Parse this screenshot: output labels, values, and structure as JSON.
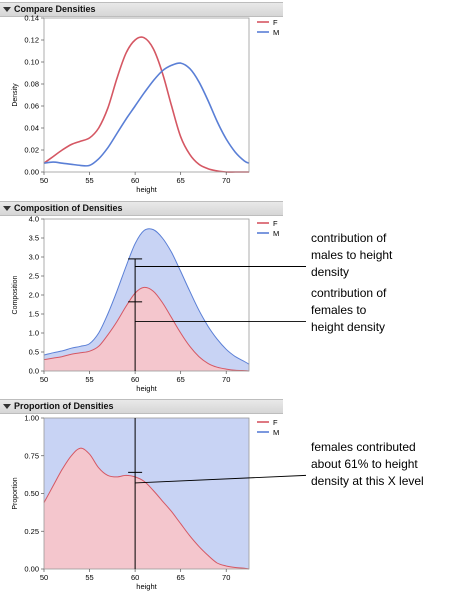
{
  "panels": [
    {
      "title": "Compare Densities"
    },
    {
      "title": "Composition of Densities"
    },
    {
      "title": "Proportion of Densities"
    }
  ],
  "colors": {
    "F": "#d55763",
    "M": "#5a7fd6",
    "F_fill": "#f4c6cd",
    "M_fill": "#c8d3f4"
  },
  "annotations": {
    "comp1": [
      "contribution of",
      "males to height",
      "density"
    ],
    "comp2": [
      "contribution of",
      "females to",
      "height density"
    ],
    "prop1": [
      "females contributed",
      "about 61% to height",
      "density at this X level"
    ]
  },
  "chart_data": [
    {
      "type": "line",
      "title": "Compare Densities",
      "xlabel": "height",
      "ylabel": "Density",
      "xlim": [
        50,
        72.5
      ],
      "ylim": [
        0,
        0.14
      ],
      "xticks": [
        "50",
        "55",
        "60",
        "65",
        "70"
      ],
      "yticks": [
        "0.00",
        "0.02",
        "0.04",
        "0.06",
        "0.08",
        "0.10",
        "0.12",
        "0.14"
      ],
      "legend": {
        "position": "top-right",
        "entries": [
          "F",
          "M"
        ]
      },
      "x": [
        50,
        51,
        52,
        53,
        54,
        55,
        56,
        57,
        58,
        59,
        60,
        61,
        62,
        63,
        64,
        65,
        66,
        67,
        68,
        69,
        70,
        71,
        72,
        72.5
      ],
      "series": [
        {
          "name": "F",
          "values": [
            0.008,
            0.014,
            0.02,
            0.025,
            0.028,
            0.031,
            0.04,
            0.058,
            0.085,
            0.108,
            0.12,
            0.122,
            0.112,
            0.09,
            0.06,
            0.032,
            0.016,
            0.007,
            0.003,
            0.001,
            0.0,
            0.0,
            0.0,
            0.0
          ]
        },
        {
          "name": "M",
          "values": [
            0.008,
            0.009,
            0.008,
            0.007,
            0.006,
            0.006,
            0.012,
            0.022,
            0.035,
            0.048,
            0.06,
            0.072,
            0.083,
            0.092,
            0.097,
            0.099,
            0.094,
            0.082,
            0.065,
            0.046,
            0.03,
            0.018,
            0.01,
            0.008
          ]
        }
      ]
    },
    {
      "type": "area",
      "title": "Composition of Densities",
      "xlabel": "height",
      "ylabel": "Composition",
      "xlim": [
        50,
        72.5
      ],
      "ylim": [
        0,
        4.0
      ],
      "xticks": [
        "50",
        "55",
        "60",
        "65",
        "70"
      ],
      "yticks": [
        "0.0",
        "0.5",
        "1.0",
        "1.5",
        "2.0",
        "2.5",
        "3.0",
        "3.5",
        "4.0"
      ],
      "legend": {
        "position": "top-right",
        "entries": [
          "F",
          "M"
        ]
      },
      "x": [
        50,
        51,
        52,
        53,
        54,
        55,
        56,
        57,
        58,
        59,
        60,
        61,
        62,
        63,
        64,
        65,
        66,
        67,
        68,
        69,
        70,
        71,
        72,
        72.5
      ],
      "series": [
        {
          "name": "F",
          "values": [
            0.3,
            0.34,
            0.38,
            0.44,
            0.48,
            0.52,
            0.65,
            0.95,
            1.3,
            1.7,
            2.05,
            2.2,
            2.1,
            1.8,
            1.4,
            1.0,
            0.65,
            0.38,
            0.2,
            0.1,
            0.05,
            0.02,
            0.01,
            0.0
          ]
        },
        {
          "name": "M",
          "values": [
            0.12,
            0.14,
            0.15,
            0.16,
            0.17,
            0.2,
            0.35,
            0.55,
            0.8,
            1.05,
            1.3,
            1.5,
            1.62,
            1.7,
            1.72,
            1.62,
            1.45,
            1.22,
            0.98,
            0.74,
            0.52,
            0.36,
            0.24,
            0.18
          ]
        }
      ]
    },
    {
      "type": "area",
      "title": "Proportion of Densities",
      "xlabel": "height",
      "ylabel": "Proportion",
      "xlim": [
        50,
        72.5
      ],
      "ylim": [
        0,
        1.0
      ],
      "xticks": [
        "50",
        "55",
        "60",
        "65",
        "70"
      ],
      "yticks": [
        "0.00",
        "0.25",
        "0.50",
        "0.75",
        "1.00"
      ],
      "legend": {
        "position": "top-right",
        "entries": [
          "F",
          "M"
        ]
      },
      "x": [
        50,
        51,
        52,
        53,
        54,
        55,
        56,
        57,
        58,
        59,
        60,
        61,
        62,
        63,
        64,
        65,
        66,
        67,
        68,
        69,
        70,
        71,
        72,
        72.5
      ],
      "series": [
        {
          "name": "F",
          "values": [
            0.44,
            0.55,
            0.66,
            0.75,
            0.8,
            0.76,
            0.67,
            0.62,
            0.61,
            0.62,
            0.61,
            0.58,
            0.52,
            0.45,
            0.38,
            0.3,
            0.22,
            0.15,
            0.09,
            0.04,
            0.02,
            0.01,
            0.005,
            0.0
          ]
        },
        {
          "name": "M",
          "values": [
            0.56,
            0.45,
            0.34,
            0.25,
            0.2,
            0.24,
            0.33,
            0.38,
            0.39,
            0.38,
            0.39,
            0.42,
            0.48,
            0.55,
            0.62,
            0.7,
            0.78,
            0.85,
            0.91,
            0.96,
            0.98,
            0.99,
            0.995,
            1.0
          ]
        }
      ]
    }
  ]
}
